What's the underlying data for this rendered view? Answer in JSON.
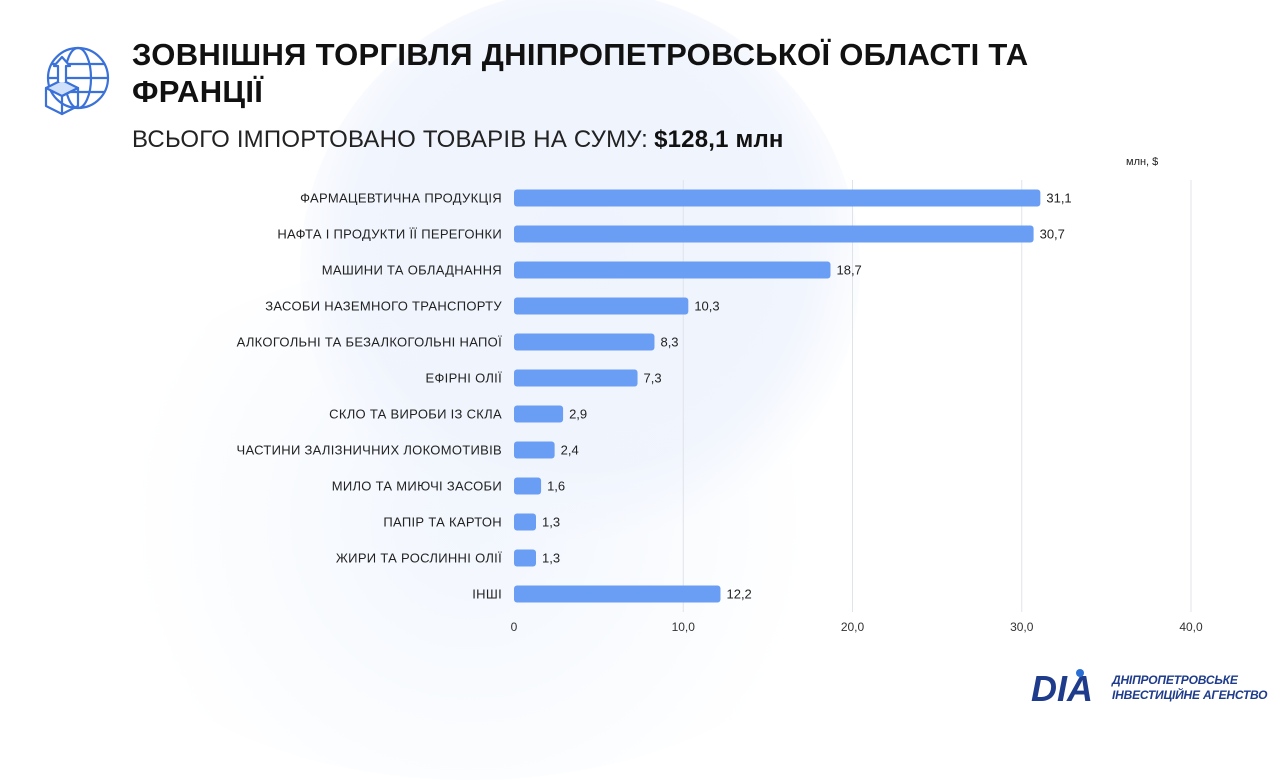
{
  "header": {
    "title": "ЗОВНІШНЯ ТОРГІВЛЯ ДНІПРОПЕТРОВСЬКОЇ ОБЛАСТІ ТА ФРАНЦІЇ",
    "subtitle_label": "ВСЬОГО ІМПОРТОВАНО ТОВАРІВ НА СУМУ:",
    "subtitle_amount": "$128,1 млн",
    "icon": "globe-box-upload-icon"
  },
  "chart_data": {
    "type": "bar",
    "orientation": "horizontal",
    "unit_label": "млн, $",
    "categories": [
      "ФАРМАЦЕВТИЧНА ПРОДУКЦІЯ",
      "НАФТА І ПРОДУКТИ ЇЇ ПЕРЕГОНКИ",
      "МАШИНИ ТА ОБЛАДНАННЯ",
      "ЗАСОБИ НАЗЕМНОГО ТРАНСПОРТУ",
      "АЛКОГОЛЬНІ ТА БЕЗАЛКОГОЛЬНІ НАПОЇ",
      "ЕФІРНІ ОЛІЇ",
      "СКЛО ТА ВИРОБИ ІЗ СКЛА",
      "ЧАСТИНИ ЗАЛІЗНИЧНИХ ЛОКОМОТИВІВ",
      "МИЛО ТА МИЮЧІ ЗАСОБИ",
      "ПАПІР ТА КАРТОН",
      "ЖИРИ ТА РОСЛИННІ ОЛІЇ",
      "ІНШІ"
    ],
    "values": [
      31.1,
      30.7,
      18.7,
      10.3,
      8.3,
      7.3,
      2.9,
      2.4,
      1.6,
      1.3,
      1.3,
      12.2
    ],
    "value_labels": [
      "31,1",
      "30,7",
      "18,7",
      "10,3",
      "8,3",
      "7,3",
      "2,9",
      "2,4",
      "1,6",
      "1,3",
      "1,3",
      "12,2"
    ],
    "xlim": [
      0,
      40
    ],
    "x_ticks": [
      0,
      10,
      20,
      30,
      40
    ],
    "x_tick_labels": [
      "0",
      "10,0",
      "20,0",
      "30,0",
      "40,0"
    ],
    "grid": true,
    "bar_color": "#6a9ef5"
  },
  "logo": {
    "mark_text": "DIA",
    "line1": "ДНІПРОПЕТРОВСЬКЕ",
    "line2": "ІНВЕСТИЦІЙНЕ АГЕНСТВО",
    "color": "#1f3c8c",
    "accent": "#2a6fd6"
  }
}
